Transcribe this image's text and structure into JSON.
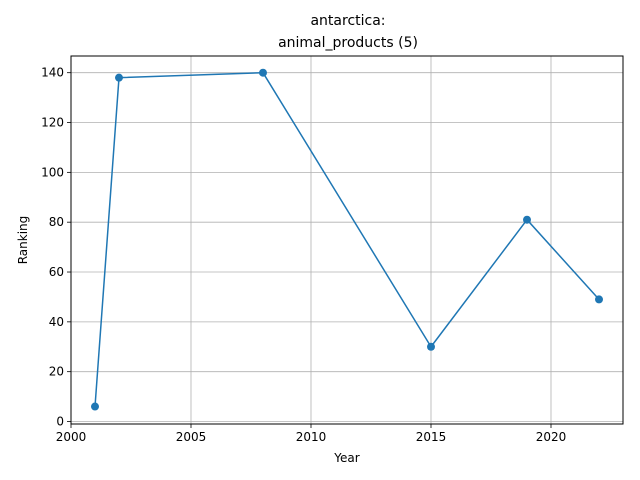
{
  "chart_data": {
    "type": "line",
    "title_line1": "antarctica:",
    "title_line2": "animal_products (5)",
    "xlabel": "Year",
    "ylabel": "Ranking",
    "xlim": [
      2000,
      2023
    ],
    "ylim": [
      -1,
      146.7
    ],
    "xticks": [
      2000,
      2005,
      2010,
      2015,
      2020
    ],
    "yticks": [
      0,
      20,
      40,
      60,
      80,
      100,
      120,
      140
    ],
    "grid": true,
    "series": [
      {
        "x": [
          2001,
          2002,
          2008,
          2015,
          2019,
          2022
        ],
        "y": [
          6,
          138,
          140,
          30,
          81,
          49
        ],
        "color": "#1f77b4",
        "marker": "circle"
      }
    ]
  }
}
